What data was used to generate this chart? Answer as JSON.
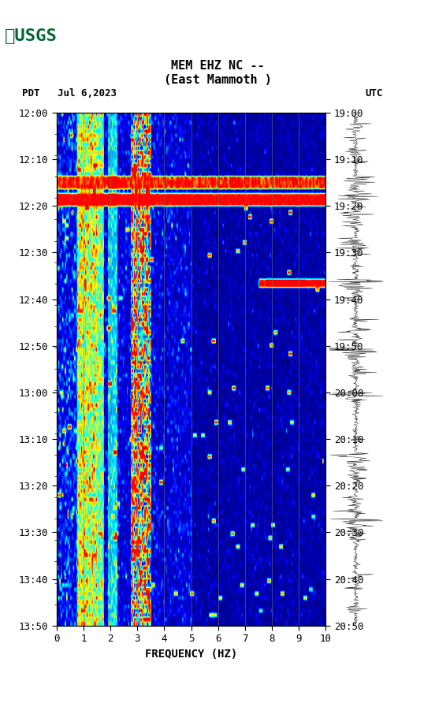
{
  "title_line1": "MEM EHZ NC --",
  "title_line2": "(East Mammoth )",
  "left_label": "PDT   Jul 6,2023",
  "right_label": "UTC",
  "left_times": [
    "12:00",
    "12:10",
    "12:20",
    "12:30",
    "12:40",
    "12:50",
    "13:00",
    "13:10",
    "13:20",
    "13:30",
    "13:40",
    "13:50"
  ],
  "right_times": [
    "19:00",
    "19:10",
    "19:20",
    "19:30",
    "19:40",
    "19:50",
    "20:00",
    "20:10",
    "20:20",
    "20:30",
    "20:40",
    "20:50"
  ],
  "xlabel": "FREQUENCY (HZ)",
  "freq_ticks": [
    0,
    1,
    2,
    3,
    4,
    5,
    6,
    7,
    8,
    9,
    10
  ],
  "freq_min": 0,
  "freq_max": 10,
  "n_time_steps": 120,
  "n_freq_steps": 200,
  "background_color": "#ffffff",
  "spectrogram_bg": "#00008B",
  "hot_band1_row": 17,
  "hot_band2_row": 20,
  "fig_width": 5.52,
  "fig_height": 8.92,
  "usgs_color": "#006633",
  "grid_color": "#808060",
  "tick_color": "#000000"
}
